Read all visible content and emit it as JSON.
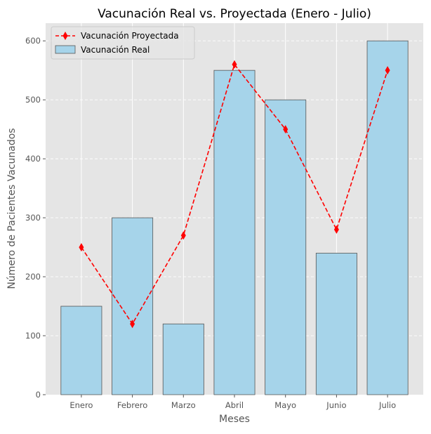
{
  "chart_data": {
    "type": "bar",
    "title": "Vacunación Real vs. Proyectada (Enero - Julio)",
    "xlabel": "Meses",
    "ylabel": "Número de Pacientes Vacunados",
    "categories": [
      "Enero",
      "Febrero",
      "Marzo",
      "Abril",
      "Mayo",
      "Junio",
      "Julio"
    ],
    "ylim": [
      0,
      630
    ],
    "yticks": [
      0,
      100,
      200,
      300,
      400,
      500,
      600
    ],
    "grid": true,
    "legend_position": "top-left",
    "series": [
      {
        "name": "Vacunación Real",
        "kind": "bar",
        "values": [
          150,
          300,
          120,
          550,
          500,
          240,
          600
        ],
        "color": "#a6d4ea",
        "edge_color": "#555555"
      },
      {
        "name": "Vacunación Proyectada",
        "kind": "line",
        "values": [
          250,
          120,
          270,
          560,
          450,
          280,
          550
        ],
        "color": "#ff0000",
        "line_style": "dashed",
        "marker": "thin-diamond"
      }
    ],
    "background_color": "#e5e5e5",
    "grid_color": "#ffffff"
  }
}
